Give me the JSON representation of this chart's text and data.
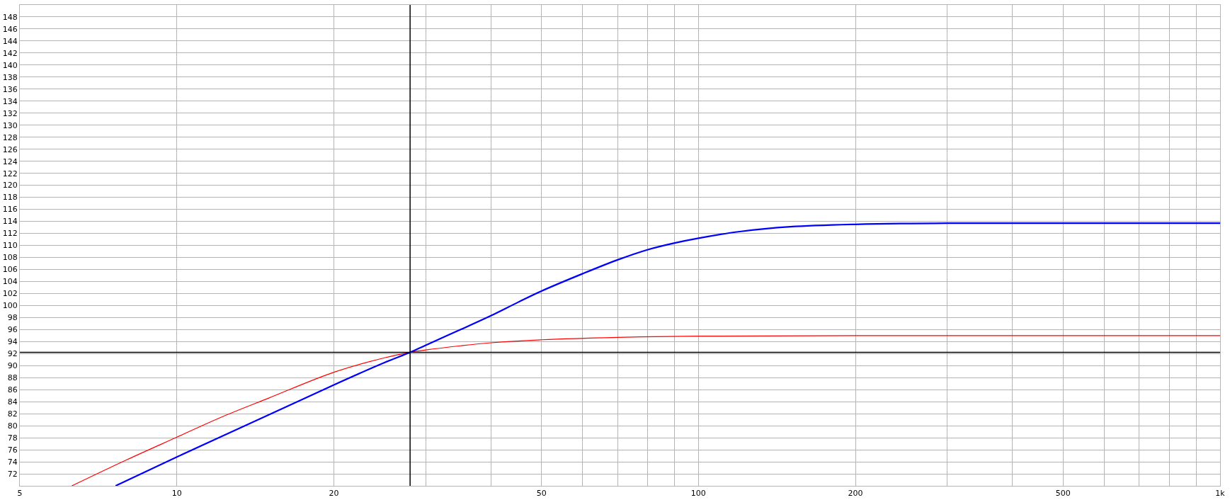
{
  "chart_data": {
    "type": "line",
    "log": "x",
    "grid": true,
    "marker": "none",
    "line_style": "solid",
    "xlim": [
      5,
      1000
    ],
    "ylim": [
      70,
      150
    ],
    "xticks": [
      5,
      10,
      20,
      {
        "value": 30,
        "label": null
      },
      {
        "value": 40,
        "label": null
      },
      50,
      {
        "value": 60,
        "label": null
      },
      {
        "value": 70,
        "label": null
      },
      {
        "value": 80,
        "label": null
      },
      {
        "value": 90,
        "label": null
      },
      100,
      200,
      {
        "value": 300,
        "label": null
      },
      {
        "value": 400,
        "label": null
      },
      500,
      {
        "value": 600,
        "label": null
      },
      {
        "value": 700,
        "label": null
      },
      {
        "value": 800,
        "label": null
      },
      {
        "value": 900,
        "label": null
      },
      {
        "value": 1000,
        "label": "1k"
      }
    ],
    "yticks": [
      72,
      74,
      76,
      78,
      80,
      82,
      84,
      86,
      88,
      90,
      92,
      94,
      96,
      98,
      100,
      102,
      104,
      106,
      108,
      110,
      112,
      114,
      116,
      118,
      120,
      122,
      124,
      126,
      128,
      130,
      132,
      134,
      136,
      138,
      140,
      142,
      144,
      146,
      148
    ],
    "series": [
      {
        "color": "#ff0000",
        "x": [
          6.29,
          8,
          10,
          12,
          15,
          20,
          25,
          28,
          30,
          35,
          40,
          50,
          70,
          100,
          200,
          1000
        ],
        "values": [
          70,
          74.3,
          78.1,
          81.2,
          84.6,
          88.9,
          91.3,
          92.2,
          92.6,
          93.3,
          93.8,
          94.3,
          94.7,
          94.9,
          95.0,
          95.0
        ]
      },
      {
        "color": "#0000ff",
        "x": [
          7.63,
          10,
          15,
          20,
          25,
          28,
          30,
          35,
          40,
          45,
          50,
          60,
          70,
          80,
          90,
          100,
          120,
          150,
          200,
          300,
          1000
        ],
        "values": [
          70,
          74.8,
          81.8,
          86.8,
          90.5,
          92.2,
          93.4,
          96.0,
          98.3,
          100.5,
          102.4,
          105.3,
          107.6,
          109.3,
          110.4,
          111.2,
          112.3,
          113.1,
          113.5,
          113.7,
          113.7
        ]
      }
    ],
    "ref_lines": [
      {
        "axis": "x",
        "value": 28,
        "color": "#000000"
      },
      {
        "axis": "y",
        "value": 92.2,
        "color": "#000000"
      }
    ]
  }
}
